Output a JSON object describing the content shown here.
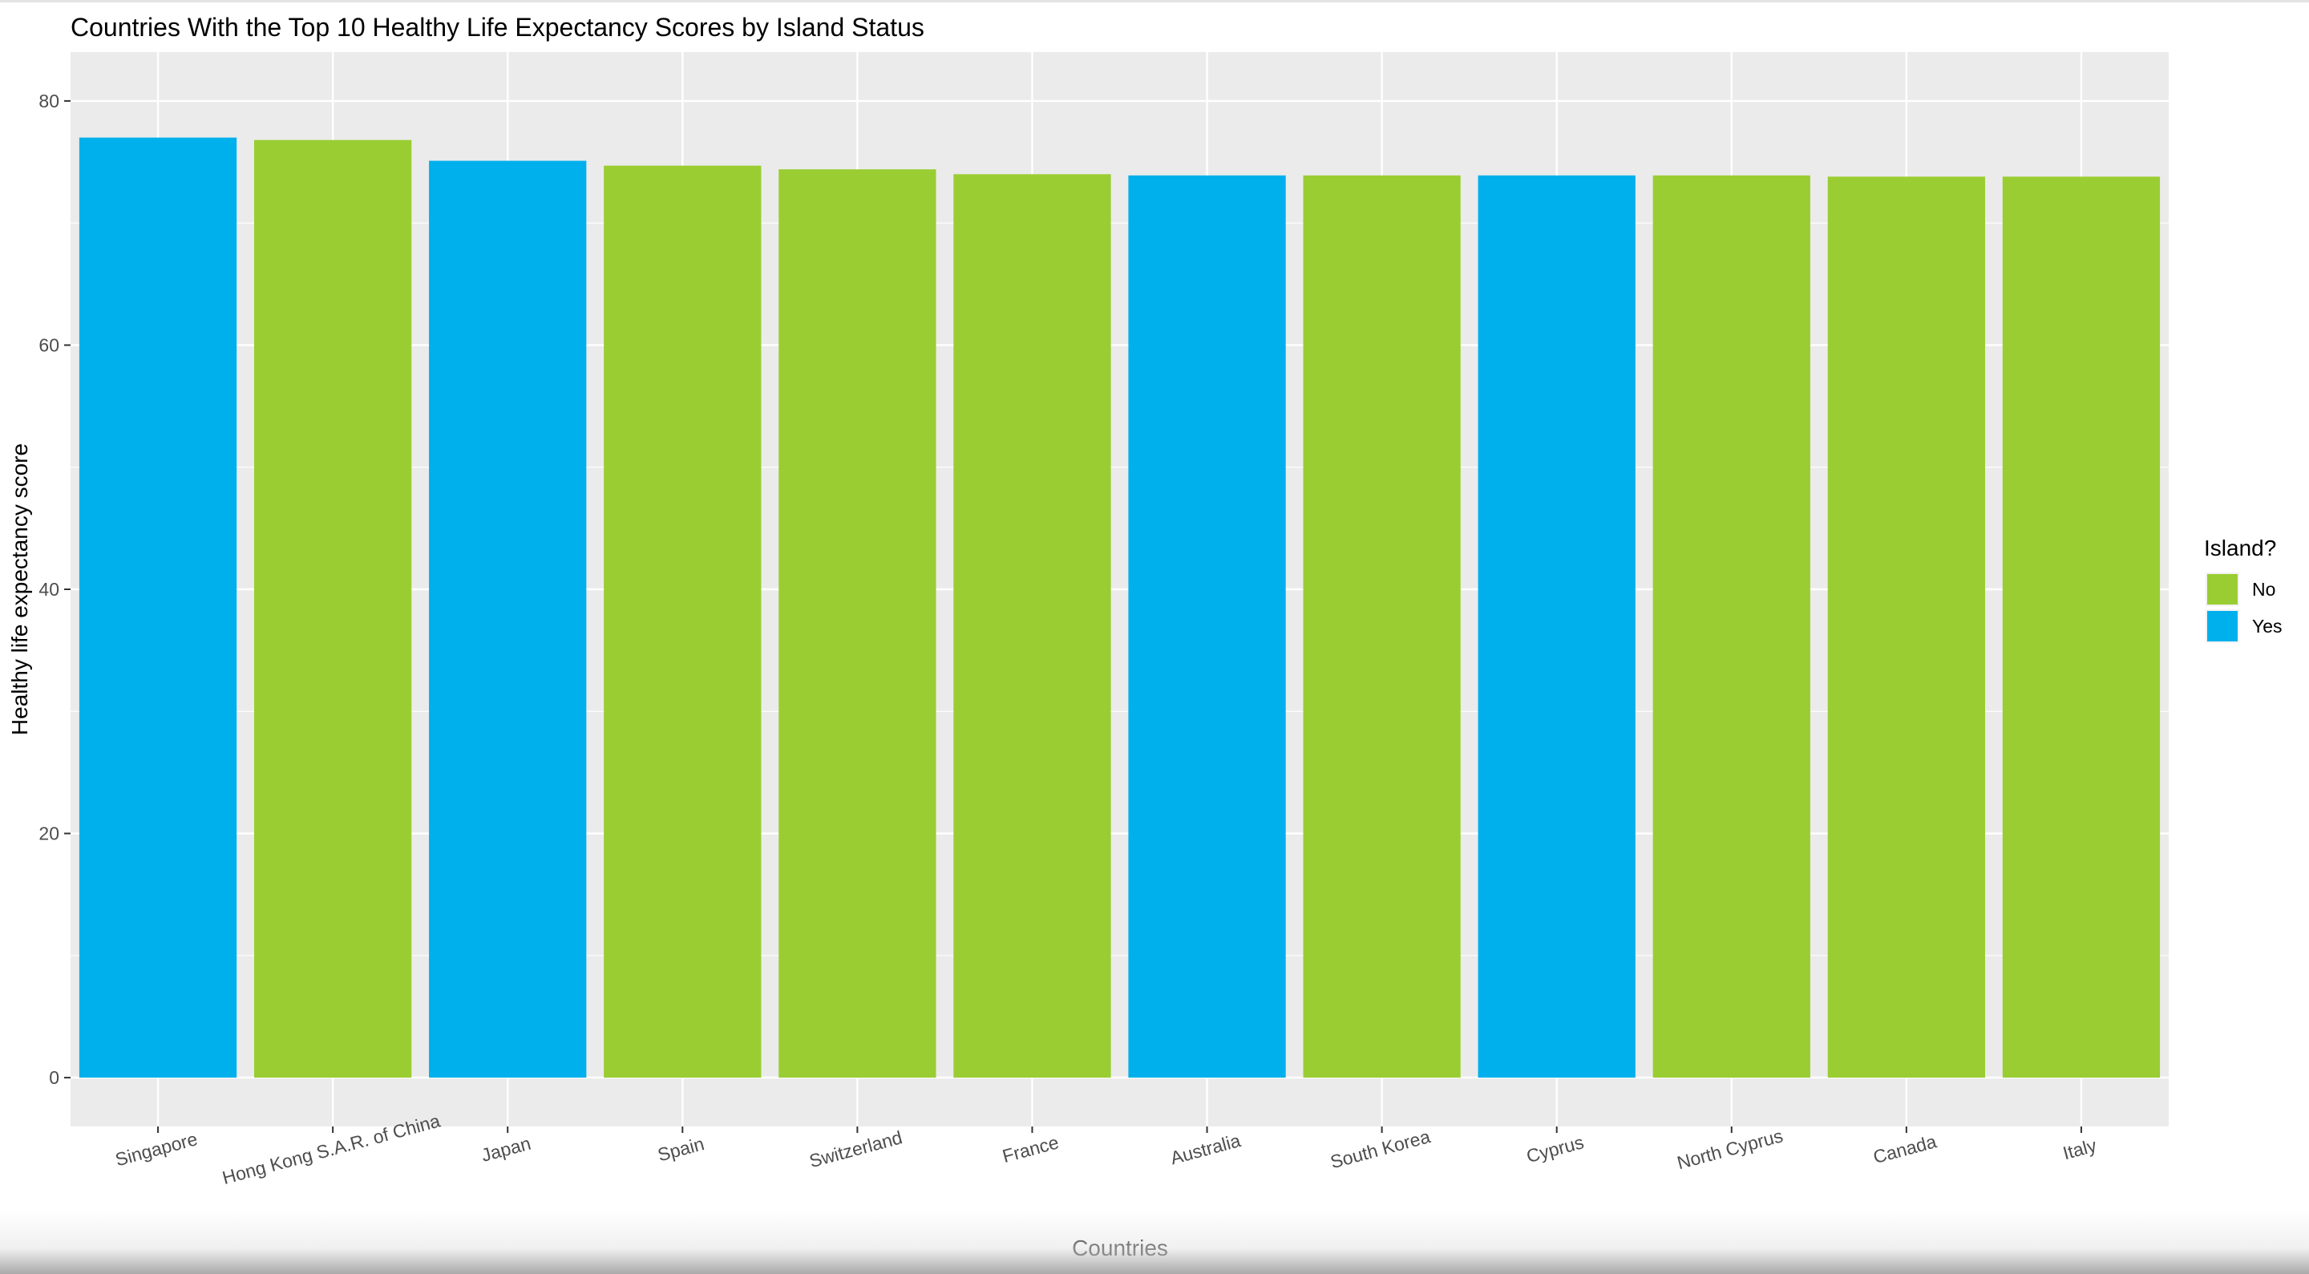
{
  "chart_data": {
    "type": "bar",
    "title": "Countries With the Top 10 Healthy Life Expectancy Scores by Island Status",
    "xlabel": "Countries",
    "ylabel": "Healthy life expectancy score",
    "categories": [
      "Singapore",
      "Hong Kong S.A.R. of China",
      "Japan",
      "Spain",
      "Switzerland",
      "France",
      "Australia",
      "South Korea",
      "Cyprus",
      "North Cyprus",
      "Canada",
      "Italy"
    ],
    "values": [
      77.0,
      76.8,
      75.1,
      74.7,
      74.4,
      74.0,
      73.9,
      73.9,
      73.9,
      73.9,
      73.8,
      73.8
    ],
    "island": [
      "Yes",
      "No",
      "Yes",
      "No",
      "No",
      "No",
      "Yes",
      "No",
      "Yes",
      "No",
      "No",
      "No"
    ],
    "y_ticks": [
      0,
      20,
      40,
      60,
      80
    ],
    "ylim": [
      -4,
      84
    ],
    "grid": true,
    "legend": {
      "title": "Island?",
      "placement": "right",
      "entries": [
        {
          "label": "No",
          "color": "#9acd32"
        },
        {
          "label": "Yes",
          "color": "#00b0ec"
        }
      ]
    },
    "colors": {
      "No": "#9acd32",
      "Yes": "#00b0ec",
      "panel": "#ebebeb",
      "grid": "#ffffff",
      "tick_text": "#4d4d4d"
    }
  }
}
